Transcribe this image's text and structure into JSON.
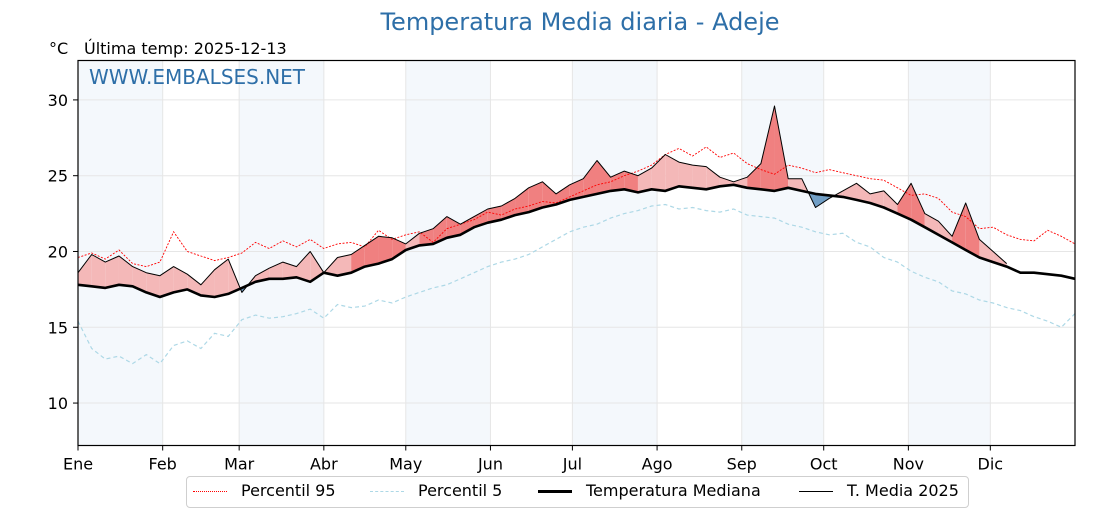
{
  "header": {
    "title": "Temperatura Media diaria - Adeje",
    "unit": "°C",
    "last_temp": "Última temp: 2025-12-13",
    "watermark": "WWW.EMBALSES.NET"
  },
  "colors": {
    "title": "#2e6fa8",
    "p95": "#ff0000",
    "p5": "#add8e6",
    "median": "#000000",
    "current": "#000000",
    "above_fill": "#f08080",
    "below_fill": "#4682b4",
    "month_band": "#f4f8fc",
    "grid": "#e6e6e6"
  },
  "chart_data": {
    "type": "line",
    "title": "Temperatura Media diaria - Adeje",
    "xlabel": "",
    "ylabel": "°C",
    "ylim": [
      7.2,
      32.6
    ],
    "xlim": [
      0,
      365
    ],
    "grid": true,
    "legend_position": "bottom-center",
    "yticks": [
      10,
      15,
      20,
      25,
      30
    ],
    "xticks": [
      {
        "day": 0,
        "label": "Ene"
      },
      {
        "day": 31,
        "label": "Feb"
      },
      {
        "day": 59,
        "label": "Mar"
      },
      {
        "day": 90,
        "label": "Abr"
      },
      {
        "day": 120,
        "label": "May"
      },
      {
        "day": 151,
        "label": "Jun"
      },
      {
        "day": 181,
        "label": "Jul"
      },
      {
        "day": 212,
        "label": "Ago"
      },
      {
        "day": 243,
        "label": "Sep"
      },
      {
        "day": 273,
        "label": "Oct"
      },
      {
        "day": 304,
        "label": "Nov"
      },
      {
        "day": 334,
        "label": "Dic"
      }
    ],
    "x": [
      0,
      5,
      10,
      15,
      20,
      25,
      30,
      35,
      40,
      45,
      50,
      55,
      60,
      65,
      70,
      75,
      80,
      85,
      90,
      95,
      100,
      105,
      110,
      115,
      120,
      125,
      130,
      135,
      140,
      145,
      150,
      155,
      160,
      165,
      170,
      175,
      180,
      185,
      190,
      195,
      200,
      205,
      210,
      215,
      220,
      225,
      230,
      235,
      240,
      245,
      250,
      255,
      260,
      265,
      270,
      275,
      280,
      285,
      290,
      295,
      300,
      305,
      310,
      315,
      320,
      325,
      330,
      335,
      340,
      345,
      350,
      355,
      360,
      365
    ],
    "series": [
      {
        "name": "Percentil 95",
        "style": "dotted-red",
        "values": [
          19.6,
          19.9,
          19.5,
          20.1,
          19.2,
          19.0,
          19.3,
          21.3,
          20.0,
          19.7,
          19.4,
          19.6,
          19.9,
          20.6,
          20.2,
          20.7,
          20.3,
          20.8,
          20.2,
          20.5,
          20.6,
          20.3,
          21.4,
          20.8,
          21.1,
          21.3,
          20.6,
          21.5,
          21.8,
          22.1,
          22.6,
          22.4,
          22.8,
          23.0,
          23.3,
          23.2,
          23.6,
          24.0,
          24.4,
          24.6,
          25.0,
          25.3,
          25.7,
          26.4,
          26.8,
          26.3,
          26.9,
          26.2,
          26.5,
          25.8,
          25.4,
          25.1,
          25.7,
          25.5,
          25.2,
          25.4,
          25.2,
          25.0,
          24.8,
          24.7,
          24.2,
          23.7,
          23.8,
          23.5,
          22.6,
          22.3,
          21.5,
          21.6,
          21.1,
          20.8,
          20.7,
          21.4,
          21.0,
          20.5
        ]
      },
      {
        "name": "Percentil 5",
        "style": "dashed-lightblue",
        "values": [
          15.4,
          13.6,
          12.9,
          13.1,
          12.6,
          13.2,
          12.6,
          13.8,
          14.1,
          13.6,
          14.6,
          14.4,
          15.5,
          15.8,
          15.6,
          15.7,
          15.9,
          16.2,
          15.6,
          16.5,
          16.3,
          16.4,
          16.8,
          16.6,
          17.0,
          17.3,
          17.6,
          17.8,
          18.2,
          18.6,
          19.0,
          19.3,
          19.5,
          19.8,
          20.3,
          20.8,
          21.3,
          21.6,
          21.8,
          22.2,
          22.5,
          22.7,
          23.0,
          23.1,
          22.8,
          22.9,
          22.7,
          22.6,
          22.8,
          22.4,
          22.3,
          22.2,
          21.8,
          21.6,
          21.3,
          21.1,
          21.2,
          20.6,
          20.3,
          19.6,
          19.3,
          18.7,
          18.3,
          18.0,
          17.4,
          17.2,
          16.8,
          16.6,
          16.3,
          16.1,
          15.7,
          15.4,
          15.0,
          15.9
        ]
      },
      {
        "name": "Temperatura Mediana",
        "style": "thick-black",
        "values": [
          17.8,
          17.7,
          17.6,
          17.8,
          17.7,
          17.3,
          17.0,
          17.3,
          17.5,
          17.1,
          17.0,
          17.2,
          17.6,
          18.0,
          18.2,
          18.2,
          18.3,
          18.0,
          18.6,
          18.4,
          18.6,
          19.0,
          19.2,
          19.5,
          20.1,
          20.4,
          20.5,
          20.9,
          21.1,
          21.6,
          21.9,
          22.1,
          22.4,
          22.6,
          22.9,
          23.1,
          23.4,
          23.6,
          23.8,
          24.0,
          24.1,
          23.9,
          24.1,
          24.0,
          24.3,
          24.2,
          24.1,
          24.3,
          24.4,
          24.2,
          24.1,
          24.0,
          24.2,
          24.0,
          23.8,
          23.7,
          23.6,
          23.4,
          23.2,
          22.9,
          22.5,
          22.1,
          21.6,
          21.1,
          20.6,
          20.1,
          19.6,
          19.3,
          19.0,
          18.6,
          18.6,
          18.5,
          18.4,
          18.2
        ]
      },
      {
        "name": "T. Media 2025",
        "style": "thin-black",
        "values": [
          18.6,
          19.8,
          19.3,
          19.7,
          19.0,
          18.6,
          18.4,
          19.0,
          18.5,
          17.8,
          18.8,
          19.5,
          17.3,
          18.4,
          18.9,
          19.3,
          19.0,
          20.0,
          18.6,
          19.6,
          19.8,
          20.4,
          21.0,
          20.9,
          20.5,
          21.2,
          21.5,
          22.3,
          21.8,
          22.3,
          22.8,
          23.0,
          23.5,
          24.2,
          24.6,
          23.8,
          24.4,
          24.8,
          26.0,
          24.9,
          25.3,
          25.0,
          25.5,
          26.4,
          25.9,
          25.7,
          25.6,
          24.9,
          24.6,
          24.9,
          25.8,
          29.6,
          24.8,
          24.8,
          22.9,
          23.5,
          24.0,
          24.5,
          23.8,
          24.0,
          23.1,
          24.5,
          22.5,
          22.0,
          21.0,
          23.2,
          20.8,
          20.0,
          19.2,
          null,
          null,
          null,
          null,
          null
        ]
      }
    ]
  },
  "legend": {
    "items": [
      {
        "label": "Percentil 95"
      },
      {
        "label": "Percentil 5"
      },
      {
        "label": "Temperatura Mediana"
      },
      {
        "label": "T. Media 2025"
      }
    ]
  }
}
